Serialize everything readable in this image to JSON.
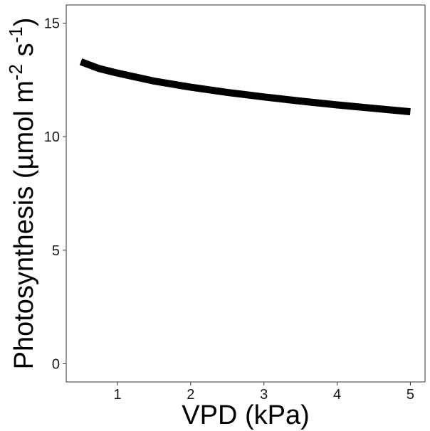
{
  "chart_data": {
    "type": "line",
    "title": "",
    "xlabel": "VPD (kPa)",
    "ylabel_parts": {
      "prefix": "Photosynthesis (µmol m",
      "exp1": "-2",
      "mid": " s",
      "exp2": "-1",
      "suffix": ")"
    },
    "xlim": [
      0.3,
      5.2
    ],
    "ylim": [
      -0.8,
      15.8
    ],
    "x_ticks": [
      1,
      2,
      3,
      4,
      5
    ],
    "x_tick_labels": [
      "1",
      "2",
      "3",
      "4",
      "5"
    ],
    "y_ticks": [
      0,
      5,
      10,
      15
    ],
    "y_tick_labels": [
      "0",
      "5",
      "10",
      "15"
    ],
    "grid": false,
    "series": [
      {
        "name": "Photosynthesis",
        "color": "#000000",
        "x": [
          0.5,
          0.75,
          1.0,
          1.5,
          2.0,
          2.5,
          3.0,
          3.5,
          4.0,
          4.5,
          5.0
        ],
        "y": [
          13.3,
          13.0,
          12.8,
          12.45,
          12.18,
          11.95,
          11.75,
          11.57,
          11.4,
          11.25,
          11.1
        ]
      }
    ]
  }
}
